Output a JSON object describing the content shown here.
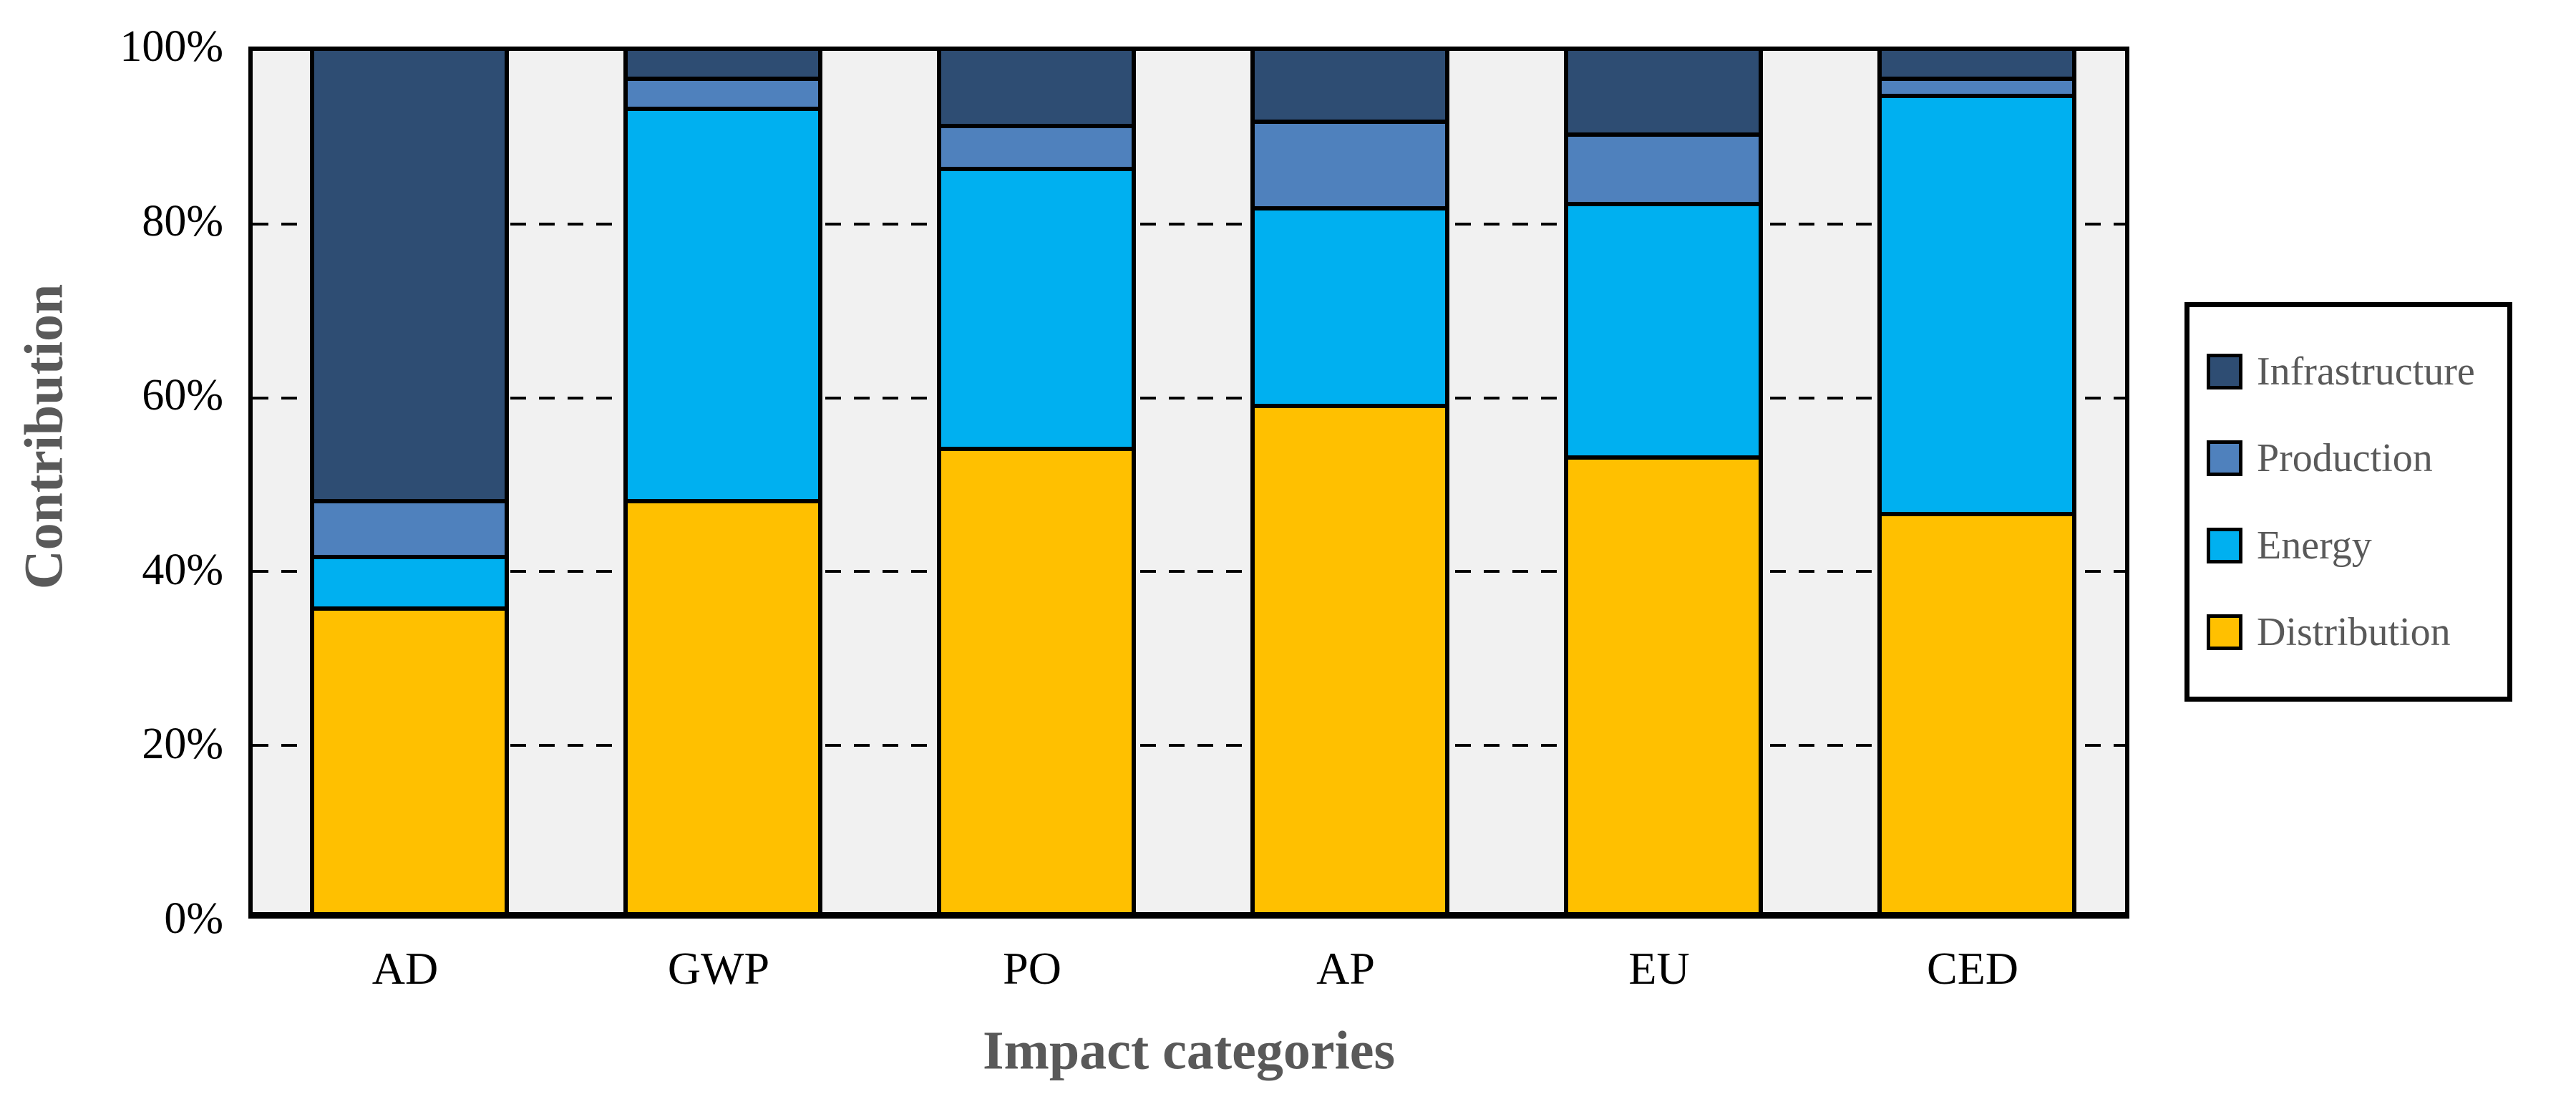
{
  "figure": {
    "background": "#FFFFFF",
    "plot_border_color": "#000000"
  },
  "y_axis": {
    "title": "Contribution",
    "ticks": [
      "0%",
      "20%",
      "40%",
      "60%",
      "80%",
      "100%"
    ],
    "tick_pcts": [
      0,
      20,
      40,
      60,
      80,
      100
    ]
  },
  "x_axis": {
    "title": "Impact categories"
  },
  "chart_data": {
    "type": "bar",
    "stacked": true,
    "unit": "percent",
    "title": "",
    "xlabel": "Impact categories",
    "ylabel": "Contribution",
    "ylim": [
      0,
      100
    ],
    "grid": "dashed horizontal at 20/40/60/80",
    "legend_position": "right",
    "plot_background": "#F1F1F1",
    "categories": [
      "AD",
      "GWP",
      "PO",
      "AP",
      "EU",
      "CED"
    ],
    "gridlines_pct": [
      20,
      40,
      60,
      80
    ],
    "series": [
      {
        "name": "Distribution",
        "color": "#FFC000",
        "values": [
          35,
          47.5,
          53.5,
          58.5,
          52.5,
          46
        ]
      },
      {
        "name": "Energy",
        "color": "#00B0F0",
        "values": [
          6,
          45.5,
          32.5,
          23,
          29.5,
          48.5
        ]
      },
      {
        "name": "Production",
        "color": "#4F81BD",
        "values": [
          6.5,
          3.5,
          5,
          10,
          8,
          2
        ]
      },
      {
        "name": "Infrastructure",
        "color": "#2E4D73",
        "values": [
          52.5,
          3.5,
          9,
          8.5,
          10,
          3.5
        ]
      }
    ],
    "legend_order_top_to_bottom": [
      "Infrastructure",
      "Production",
      "Energy",
      "Distribution"
    ]
  },
  "colors": {
    "axis_text": "#000000",
    "title_text": "#595959",
    "border": "#000000"
  }
}
